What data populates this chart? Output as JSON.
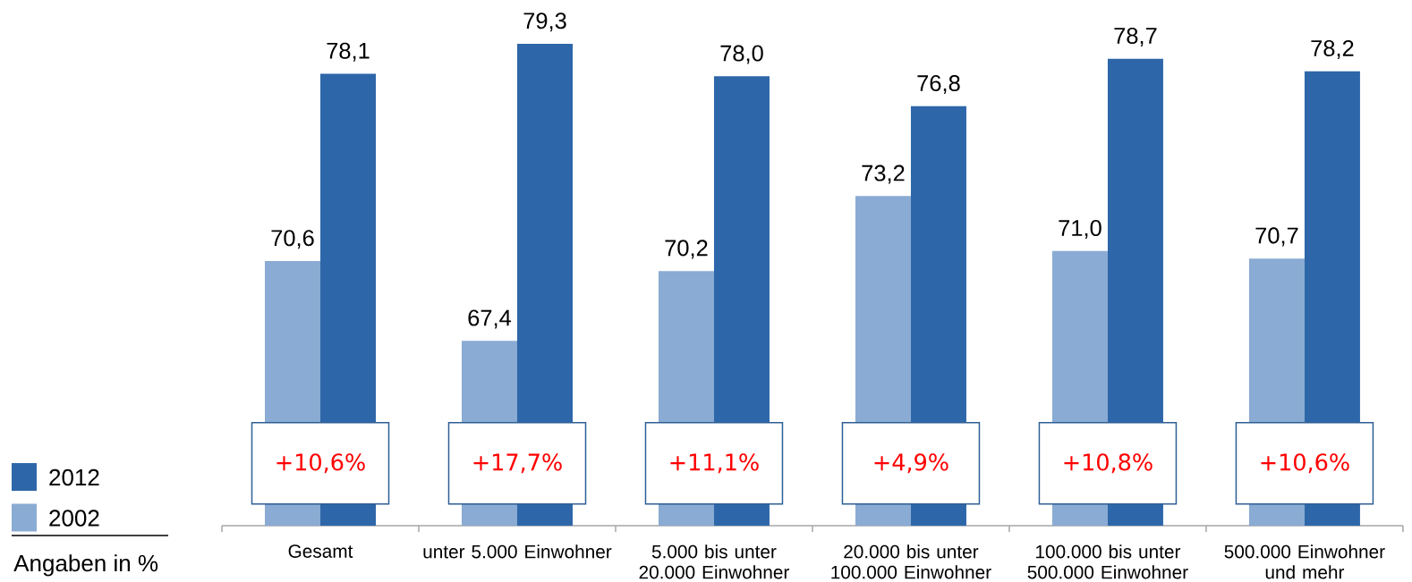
{
  "chart_data": {
    "type": "bar",
    "categories": [
      "Gesamt",
      "unter 5.000 Einwohner",
      "5.000 bis unter 20.000 Einwohner",
      "20.000 bis unter 100.000 Einwohner",
      "100.000 bis unter 500.000 Einwohner",
      "500.000 Einwohner und mehr"
    ],
    "series": [
      {
        "name": "2002",
        "color": "#8aabd3",
        "values": [
          70.6,
          67.4,
          70.2,
          73.2,
          71.0,
          70.7
        ],
        "value_labels": [
          "70,6",
          "67,4",
          "70,2",
          "73,2",
          "71,0",
          "70,7"
        ]
      },
      {
        "name": "2012",
        "color": "#2e67a9",
        "values": [
          78.1,
          79.3,
          78.0,
          76.8,
          78.7,
          78.2
        ],
        "value_labels": [
          "78,1",
          "79,3",
          "78,0",
          "76,8",
          "78,7",
          "78,2"
        ]
      }
    ],
    "ylim": [
      60,
      79.3
    ],
    "tick_labels": "x",
    "legend": "bottom left",
    "annotations": [
      {
        "text": "+10,6%",
        "x": "Gesamt",
        "y": 62.5
      },
      {
        "text": "+17,7%",
        "x": "unter 5.000 Einwohner",
        "y": 62.5
      },
      {
        "text": "+11,1%",
        "x": "5.000 bis unter 20.000 Einwohner",
        "y": 62.5
      },
      {
        "text": "+4,9%",
        "x": "20.000 bis unter 100.000 Einwohner",
        "y": 62.5
      },
      {
        "text": "+10,8%",
        "x": "100.000 bis unter 500.000 Einwohner",
        "y": 62.5
      },
      {
        "text": "+10,6%",
        "x": "500.000 Einwohner und mehr",
        "y": 62.5
      },
      "Angaben in %"
    ]
  }
}
